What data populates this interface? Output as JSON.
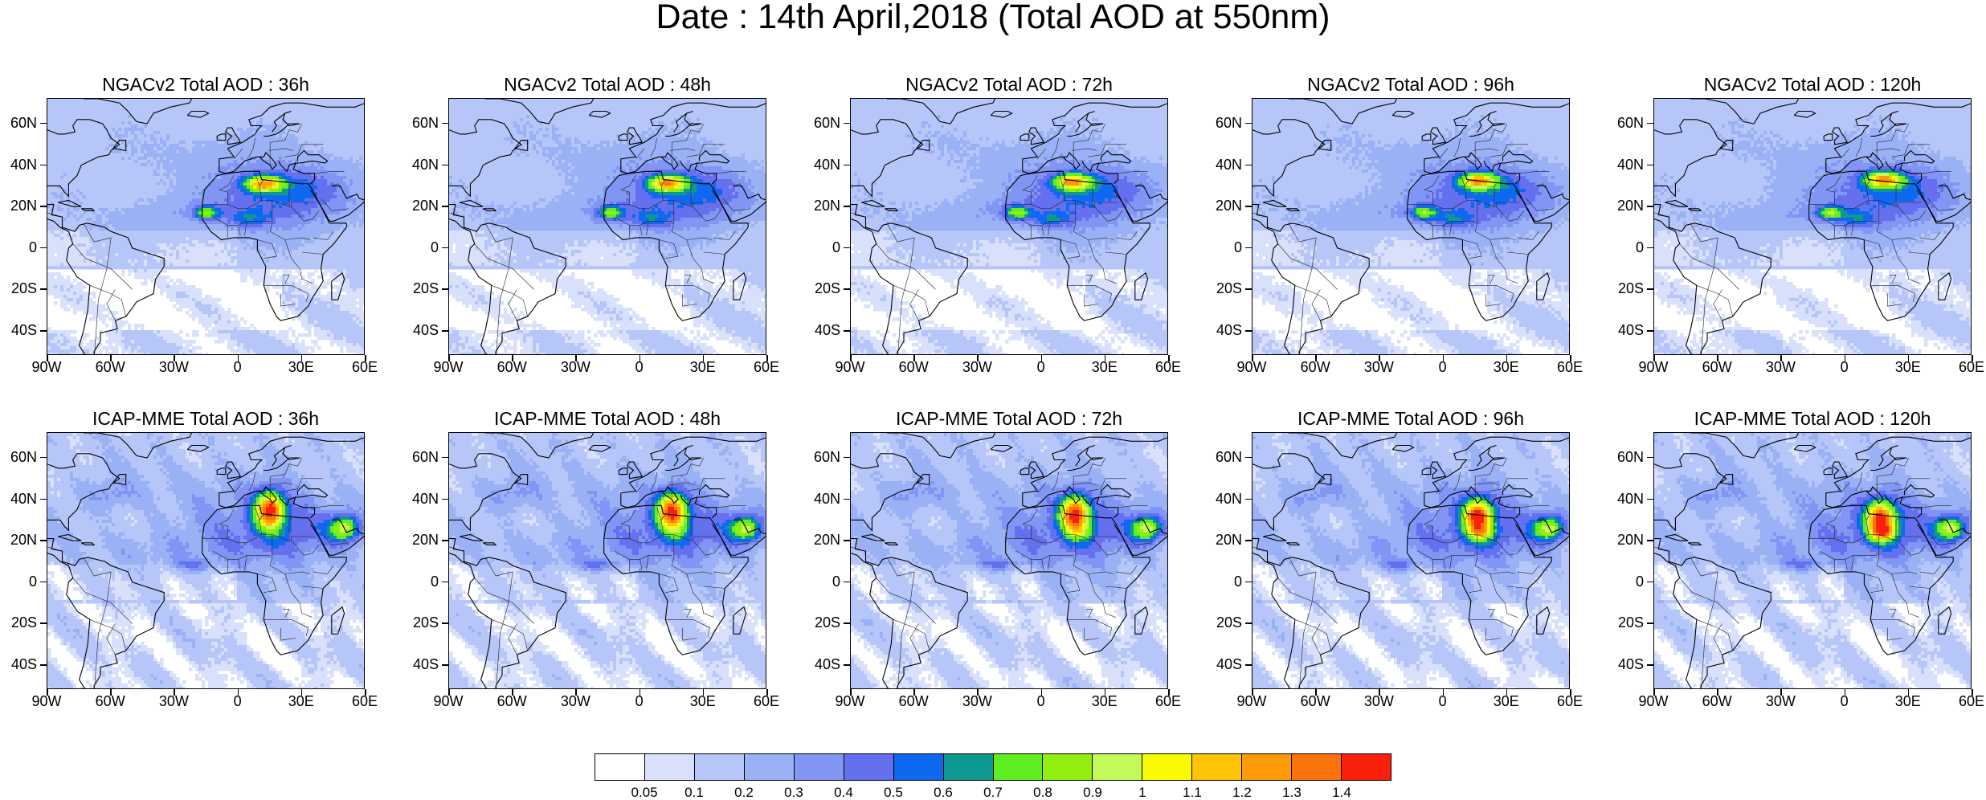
{
  "title": "Date : 14th April,2018 (Total AOD at 550nm)",
  "panels": [
    {
      "title": "NGACv2 Total AOD : 36h",
      "model": "ngac",
      "lead": 36
    },
    {
      "title": "NGACv2 Total AOD : 48h",
      "model": "ngac",
      "lead": 48
    },
    {
      "title": "NGACv2 Total AOD : 72h",
      "model": "ngac",
      "lead": 72
    },
    {
      "title": "NGACv2 Total AOD : 96h",
      "model": "ngac",
      "lead": 96
    },
    {
      "title": "NGACv2 Total AOD : 120h",
      "model": "ngac",
      "lead": 120
    },
    {
      "title": "ICAP-MME Total AOD : 36h",
      "model": "icap",
      "lead": 36
    },
    {
      "title": "ICAP-MME Total AOD : 48h",
      "model": "icap",
      "lead": 48
    },
    {
      "title": "ICAP-MME Total AOD : 72h",
      "model": "icap",
      "lead": 72
    },
    {
      "title": "ICAP-MME Total AOD : 96h",
      "model": "icap",
      "lead": 96
    },
    {
      "title": "ICAP-MME Total AOD : 120h",
      "model": "icap",
      "lead": 120
    }
  ],
  "lat_labels": [
    "60N",
    "40N",
    "20N",
    "0",
    "20S",
    "40S"
  ],
  "lon_labels": [
    "90W",
    "60W",
    "30W",
    "0",
    "30E",
    "60E"
  ],
  "map_extent": {
    "lon": [
      -90,
      60
    ],
    "lat": [
      -52,
      72
    ]
  },
  "colorbar": {
    "labels": [
      "0.05",
      "0.1",
      "0.2",
      "0.3",
      "0.4",
      "0.5",
      "0.6",
      "0.7",
      "0.8",
      "0.9",
      "1",
      "1.1",
      "1.2",
      "1.3",
      "1.4"
    ],
    "colors": [
      "#ffffff",
      "#d8e0fb",
      "#b7c6f8",
      "#9bb1f6",
      "#8196f4",
      "#6470ee",
      "#0f69f0",
      "#0f9890",
      "#5eee22",
      "#92ee0f",
      "#c4f95a",
      "#fafb02",
      "#fec405",
      "#fd9a07",
      "#fb720a",
      "#fa200c"
    ]
  }
}
